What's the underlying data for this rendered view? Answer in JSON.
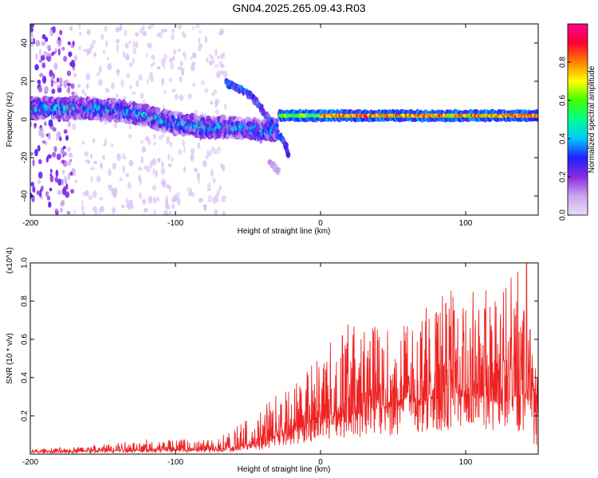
{
  "title": "GN04.2025.265.09.43.R03",
  "colors": {
    "snr_line": "#ee2222",
    "colormap": [
      "#e8ddf7",
      "#c9a6f0",
      "#8a2be2",
      "#2020ff",
      "#00c8ff",
      "#00ff90",
      "#40ff00",
      "#ffff00",
      "#ff8000",
      "#ff0030",
      "#ff0090"
    ]
  },
  "chart_data": [
    {
      "type": "heatmap",
      "name": "spectrogram",
      "xlabel": "Height of straight line (km)",
      "ylabel": "Frequency (Hz)",
      "xlim": [
        -200,
        150
      ],
      "ylim": [
        -50,
        50
      ],
      "x_ticks": [
        -200,
        -100,
        0,
        100
      ],
      "x_tick_labels": [
        "-200",
        "-100",
        "0",
        "100"
      ],
      "y_ticks": [
        -40,
        -20,
        0,
        20,
        40
      ],
      "y_tick_labels": [
        "-40",
        "-20",
        "0",
        "20",
        "40"
      ],
      "colorbar": {
        "label": "Normalized spectral amplitude",
        "range": [
          0,
          1
        ],
        "ticks": [
          0.0,
          0.2,
          0.4,
          0.6,
          0.8
        ],
        "tick_labels": [
          "0.0",
          "0.2",
          "0.4",
          "0.6",
          "0.8"
        ]
      },
      "features": [
        {
          "type": "scattered_noise",
          "x": [
            -200,
            -170
          ],
          "amplitude": 0.2
        },
        {
          "type": "scattered_noise",
          "x": [
            -170,
            -65
          ],
          "amplitude": 0.05
        },
        {
          "type": "band",
          "points": [
            [
              -200,
              6
            ],
            [
              -170,
              6
            ],
            [
              -140,
              5
            ],
            [
              -120,
              2
            ],
            [
              -100,
              -2
            ],
            [
              -80,
              -4
            ],
            [
              -60,
              -4
            ],
            [
              -40,
              -6
            ],
            [
              -30,
              -5
            ]
          ],
          "amplitude": 0.4
        },
        {
          "type": "branch",
          "points": [
            [
              -65,
              19
            ],
            [
              -55,
              16
            ],
            [
              -45,
              10
            ],
            [
              -38,
              3
            ],
            [
              -32,
              -4
            ],
            [
              -25,
              -12
            ],
            [
              -22,
              -18
            ]
          ],
          "amplitude": 0.3
        },
        {
          "type": "branch",
          "points": [
            [
              -35,
              -22
            ],
            [
              -28,
              -28
            ]
          ],
          "amplitude": 0.1
        },
        {
          "type": "tonal_line",
          "x": [
            -28,
            150
          ],
          "frequency": 2,
          "amplitude": 0.9
        }
      ]
    },
    {
      "type": "line",
      "name": "snr",
      "xlabel": "Height of straight line (km)",
      "ylabel": "SNR (10 * v/v)",
      "y_multiplier": "(x10^4)",
      "xlim": [
        -200,
        150
      ],
      "ylim": [
        0,
        1.0
      ],
      "x_ticks": [
        -200,
        -100,
        0,
        100
      ],
      "x_tick_labels": [
        "-200",
        "-100",
        "0",
        "100"
      ],
      "y_ticks": [
        0.2,
        0.4,
        0.6,
        0.8,
        1.0
      ],
      "y_tick_labels": [
        "0.2",
        "0.4",
        "0.6",
        "0.8",
        "1.0"
      ],
      "envelope": [
        {
          "x": -200,
          "base": 0.01,
          "peak": 0.02
        },
        {
          "x": -150,
          "base": 0.015,
          "peak": 0.04
        },
        {
          "x": -120,
          "base": 0.02,
          "peak": 0.06
        },
        {
          "x": -80,
          "base": 0.02,
          "peak": 0.06
        },
        {
          "x": -60,
          "base": 0.03,
          "peak": 0.1
        },
        {
          "x": -40,
          "base": 0.06,
          "peak": 0.2
        },
        {
          "x": -20,
          "base": 0.12,
          "peak": 0.3
        },
        {
          "x": 0,
          "base": 0.18,
          "peak": 0.45
        },
        {
          "x": 20,
          "base": 0.2,
          "peak": 0.55
        },
        {
          "x": 50,
          "base": 0.25,
          "peak": 0.55
        },
        {
          "x": 90,
          "base": 0.3,
          "peak": 0.7
        },
        {
          "x": 120,
          "base": 0.3,
          "peak": 0.7
        },
        {
          "x": 140,
          "base": 0.3,
          "peak": 0.8
        },
        {
          "x": 150,
          "base": 0.25,
          "peak": 0.5
        }
      ],
      "peaks": [
        {
          "x": 15,
          "y": 0.62
        },
        {
          "x": 92,
          "y": 0.75
        },
        {
          "x": 140,
          "y": 0.75
        },
        {
          "x": 142,
          "y": 1.0
        }
      ]
    }
  ]
}
